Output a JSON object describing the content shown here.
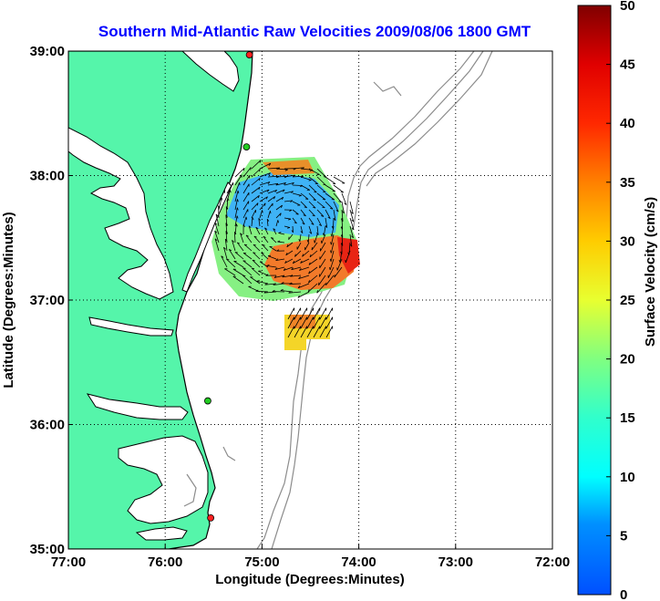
{
  "title": "Southern Mid-Atlantic Raw Velocities 2009/08/06 1800 GMT",
  "x_axis": {
    "label": "Longitude (Degrees:Minutes)",
    "ticks": [
      {
        "value": -77,
        "label": "77:00"
      },
      {
        "value": -76,
        "label": "76:00"
      },
      {
        "value": -75,
        "label": "75:00"
      },
      {
        "value": -74,
        "label": "74:00"
      },
      {
        "value": -73,
        "label": "73:00"
      },
      {
        "value": -72,
        "label": "72:00"
      }
    ]
  },
  "y_axis": {
    "label": "Latitude (Degrees:Minutes)",
    "ticks": [
      {
        "value": 35,
        "label": "35:00"
      },
      {
        "value": 36,
        "label": "36:00"
      },
      {
        "value": 37,
        "label": "37:00"
      },
      {
        "value": 38,
        "label": "38:00"
      },
      {
        "value": 39,
        "label": "39:00"
      }
    ]
  },
  "colorbar": {
    "label": "Surface Velocity (cm/s)",
    "min": 0,
    "max": 50,
    "ticks": [
      "0",
      "5",
      "10",
      "15",
      "20",
      "25",
      "30",
      "35",
      "40",
      "45",
      "50"
    ]
  },
  "colors": {
    "land": "#55f5aa",
    "water": "#ffffff",
    "coastline": "#000000",
    "bathymetry": "#8c8c8c",
    "grid": "#000000",
    "station": "#ff2020"
  },
  "stations": [
    {
      "lon": -75.13,
      "lat": 38.97,
      "color": "#ff2020"
    },
    {
      "lon": -75.16,
      "lat": 38.23,
      "color": "#22cc22"
    },
    {
      "lon": -75.56,
      "lat": 36.19,
      "color": "#22cc22"
    },
    {
      "lon": -75.53,
      "lat": 35.25,
      "color": "#ff2020"
    }
  ]
}
